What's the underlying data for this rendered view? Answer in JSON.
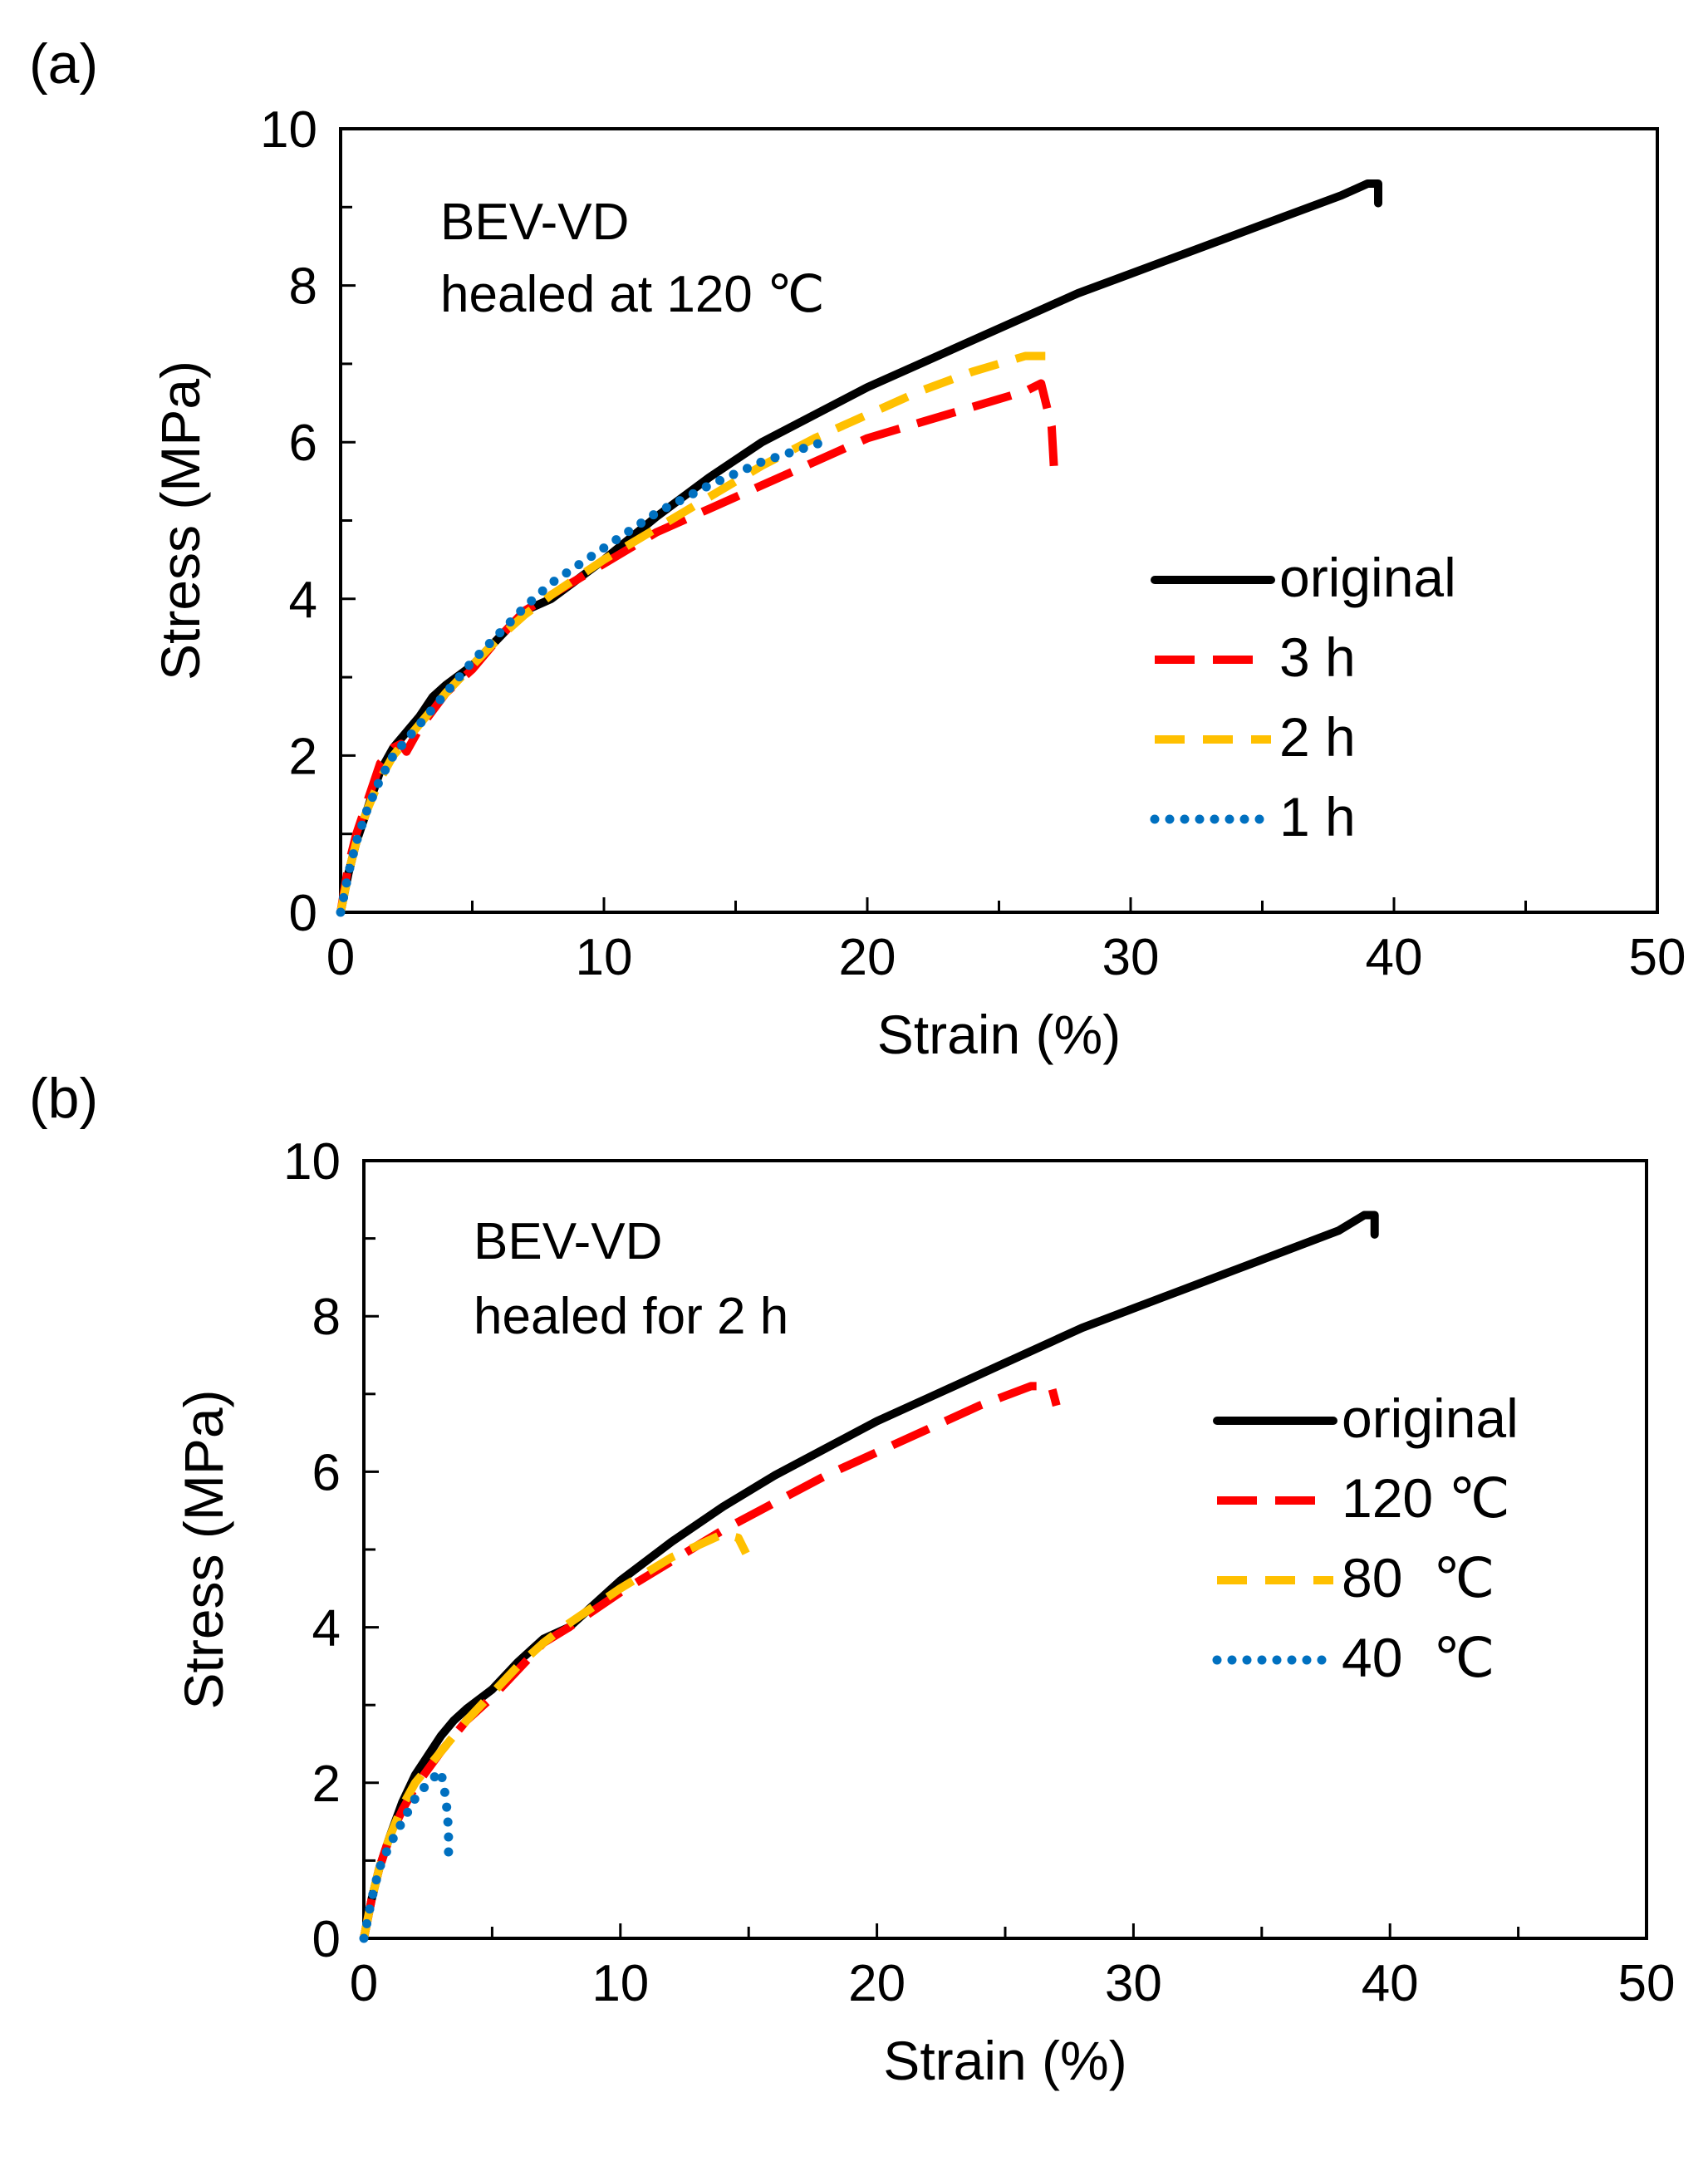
{
  "chart_data": [
    {
      "panel_label": "(a)",
      "type": "line",
      "xlabel": "Strain (%)",
      "ylabel": "Stress (MPa)",
      "xlim": [
        0,
        50
      ],
      "ylim": [
        0,
        10
      ],
      "xticks": [
        "0",
        "10",
        "20",
        "30",
        "40",
        "50"
      ],
      "yticks": [
        "0",
        "2",
        "4",
        "6",
        "8",
        "10"
      ],
      "annotations": [
        "BEV-VD",
        "healed at 120 ℃"
      ],
      "legend_placement": "middle-right",
      "series": [
        {
          "name": "original",
          "color": "#000000",
          "dash": "solid",
          "x": [
            0,
            0.3,
            0.6,
            1,
            1.5,
            2,
            2.5,
            3,
            3.5,
            4,
            5,
            6,
            7,
            8,
            9,
            10,
            12,
            14,
            16,
            18,
            20,
            22,
            24,
            26,
            28,
            30,
            32,
            34,
            36,
            38,
            39,
            39.4,
            39.4
          ],
          "y": [
            0,
            0.5,
            0.9,
            1.3,
            1.8,
            2.1,
            2.3,
            2.5,
            2.75,
            2.9,
            3.15,
            3.5,
            3.85,
            4.0,
            4.25,
            4.5,
            5.05,
            5.55,
            6.0,
            6.35,
            6.7,
            7.0,
            7.3,
            7.6,
            7.9,
            8.15,
            8.4,
            8.65,
            8.9,
            9.15,
            9.3,
            9.3,
            9.05
          ]
        },
        {
          "name": "3 h",
          "color": "#ff0000",
          "dash": "long-dash",
          "x": [
            0,
            0.3,
            0.6,
            1,
            1.5,
            2,
            2.3,
            2.5,
            3,
            4,
            5,
            6,
            7,
            8,
            10,
            12,
            14,
            16,
            18,
            20,
            22,
            24,
            26,
            26.6,
            27,
            27.1
          ],
          "y": [
            0,
            0.6,
            1.0,
            1.4,
            1.9,
            2.1,
            2.15,
            2.05,
            2.35,
            2.8,
            3.1,
            3.5,
            3.85,
            4.05,
            4.45,
            4.85,
            5.15,
            5.45,
            5.75,
            6.05,
            6.25,
            6.45,
            6.65,
            6.75,
            6.2,
            5.6
          ]
        },
        {
          "name": "2 h",
          "color": "#ffc000",
          "dash": "dash",
          "x": [
            0,
            0.3,
            0.6,
            1,
            1.5,
            2,
            3,
            4,
            5,
            6,
            7,
            8,
            10,
            12,
            14,
            16,
            18,
            20,
            22,
            24,
            26,
            26.8
          ],
          "y": [
            0,
            0.5,
            0.9,
            1.3,
            1.7,
            2.0,
            2.4,
            2.8,
            3.15,
            3.5,
            3.8,
            4.05,
            4.5,
            4.9,
            5.3,
            5.7,
            6.05,
            6.35,
            6.65,
            6.9,
            7.1,
            7.1
          ]
        },
        {
          "name": "1 h",
          "color": "#0070c0",
          "dash": "dot",
          "x": [
            0,
            0.3,
            0.6,
            1,
            1.5,
            2,
            3,
            4,
            5,
            6,
            7,
            8,
            10,
            12,
            14,
            16,
            18.3
          ],
          "y": [
            0,
            0.5,
            0.9,
            1.3,
            1.7,
            2.0,
            2.4,
            2.8,
            3.2,
            3.55,
            3.9,
            4.2,
            4.65,
            5.1,
            5.45,
            5.75,
            6.0
          ]
        }
      ]
    },
    {
      "panel_label": "(b)",
      "type": "line",
      "xlabel": "Strain (%)",
      "ylabel": "Stress (MPa)",
      "xlim": [
        0,
        50
      ],
      "ylim": [
        0,
        10
      ],
      "xticks": [
        "0",
        "10",
        "20",
        "30",
        "40",
        "50"
      ],
      "yticks": [
        "0",
        "2",
        "4",
        "6",
        "8",
        "10"
      ],
      "annotations": [
        "BEV-VD",
        "healed for 2 h"
      ],
      "legend_placement": "middle-right",
      "series": [
        {
          "name": "original",
          "color": "#000000",
          "dash": "solid",
          "x": [
            0,
            0.3,
            0.6,
            1,
            1.5,
            2,
            2.5,
            3,
            3.5,
            4,
            5,
            6,
            7,
            8,
            9,
            10,
            12,
            14,
            16,
            18,
            20,
            22,
            24,
            26,
            28,
            30,
            32,
            34,
            36,
            38,
            39,
            39.4,
            39.4
          ],
          "y": [
            0,
            0.5,
            0.9,
            1.3,
            1.75,
            2.1,
            2.35,
            2.6,
            2.8,
            2.95,
            3.2,
            3.55,
            3.85,
            4.0,
            4.3,
            4.6,
            5.1,
            5.55,
            5.95,
            6.3,
            6.65,
            6.95,
            7.25,
            7.55,
            7.85,
            8.1,
            8.35,
            8.6,
            8.85,
            9.1,
            9.3,
            9.3,
            9.05
          ]
        },
        {
          "name": "120 ℃",
          "color": "#ff0000",
          "dash": "long-dash",
          "x": [
            0,
            0.3,
            0.6,
            1,
            1.5,
            2,
            3,
            4,
            5,
            6,
            7,
            8,
            10,
            12,
            14,
            16,
            18,
            20,
            22,
            24,
            26,
            26.8,
            27
          ],
          "y": [
            0,
            0.5,
            0.9,
            1.3,
            1.65,
            1.95,
            2.4,
            2.8,
            3.1,
            3.45,
            3.8,
            4.0,
            4.45,
            4.85,
            5.25,
            5.6,
            5.95,
            6.25,
            6.55,
            6.85,
            7.1,
            7.1,
            6.85
          ]
        },
        {
          "name": "80  ℃",
          "color": "#ffc000",
          "dash": "dash",
          "x": [
            0,
            0.3,
            0.6,
            1,
            1.5,
            2,
            3,
            4,
            5,
            6,
            7,
            8,
            10,
            12,
            14,
            14.6,
            14.9
          ],
          "y": [
            0,
            0.5,
            0.9,
            1.3,
            1.7,
            2.0,
            2.4,
            2.8,
            3.15,
            3.5,
            3.8,
            4.05,
            4.5,
            4.9,
            5.2,
            5.15,
            4.95
          ]
        },
        {
          "name": "40  ℃",
          "color": "#0070c0",
          "dash": "dot",
          "x": [
            0,
            0.3,
            0.6,
            1,
            1.5,
            2,
            2.5,
            3,
            3.2,
            3.3,
            3.3
          ],
          "y": [
            0,
            0.5,
            0.9,
            1.2,
            1.5,
            1.8,
            2.0,
            2.15,
            1.8,
            1.4,
            1.0
          ]
        }
      ]
    }
  ]
}
